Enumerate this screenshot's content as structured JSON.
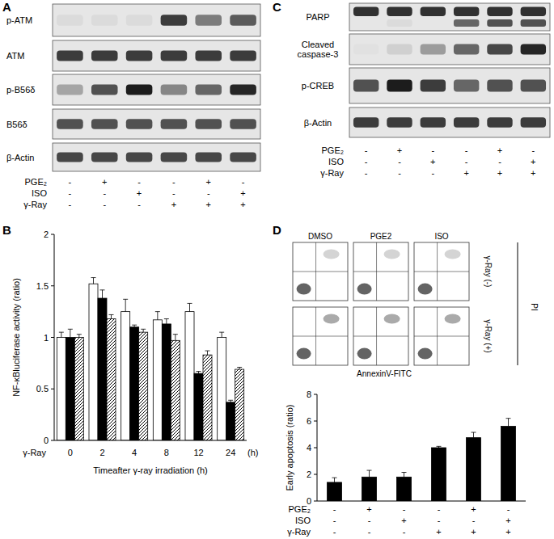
{
  "panels": [
    {
      "label": "A",
      "blots": [
        {
          "name": "p-ATM",
          "intensity": [
            0.05,
            0.05,
            0.05,
            0.8,
            0.5,
            0.65
          ]
        },
        {
          "name": "ATM",
          "intensity": [
            0.8,
            0.8,
            0.8,
            0.8,
            0.8,
            0.8
          ]
        },
        {
          "name": "p-B56δ",
          "intensity": [
            0.3,
            0.7,
            0.95,
            0.45,
            0.6,
            0.9
          ]
        },
        {
          "name": "B56δ",
          "intensity": [
            0.7,
            0.7,
            0.7,
            0.7,
            0.7,
            0.7
          ]
        },
        {
          "name": "β-Actin",
          "intensity": [
            0.75,
            0.75,
            0.75,
            0.75,
            0.75,
            0.75
          ]
        }
      ],
      "conditions": [
        {
          "name": "PGE₂",
          "signs": [
            "-",
            "+",
            "-",
            "-",
            "+",
            "-"
          ]
        },
        {
          "name": "ISO",
          "signs": [
            "-",
            "-",
            "+",
            "-",
            "-",
            "+"
          ]
        },
        {
          "name": "γ-Ray",
          "signs": [
            "-",
            "-",
            "-",
            "+",
            "+",
            "+"
          ]
        }
      ]
    },
    {
      "label": "C",
      "blots": [
        {
          "name": "PARP",
          "intensity": [
            0.85,
            0.85,
            0.85,
            0.85,
            0.85,
            0.85
          ],
          "lower_band": [
            0.0,
            0.05,
            0.0,
            0.6,
            0.7,
            0.7
          ]
        },
        {
          "name": "Cleaved caspase-3",
          "intensity": [
            0.02,
            0.1,
            0.35,
            0.6,
            0.75,
            0.9
          ]
        },
        {
          "name": "p-CREB",
          "intensity": [
            0.7,
            0.95,
            0.8,
            0.6,
            0.7,
            0.7
          ]
        },
        {
          "name": "β-Actin",
          "intensity": [
            0.8,
            0.8,
            0.8,
            0.8,
            0.8,
            0.8
          ]
        }
      ],
      "conditions": [
        {
          "name": "PGE₂",
          "signs": [
            "-",
            "+",
            "-",
            "-",
            "+",
            "-"
          ]
        },
        {
          "name": "ISO",
          "signs": [
            "-",
            "-",
            "+",
            "-",
            "-",
            "+"
          ]
        },
        {
          "name": "γ-Ray",
          "signs": [
            "-",
            "-",
            "-",
            "+",
            "+",
            "+"
          ]
        }
      ]
    },
    {
      "label": "D",
      "flow": {
        "columns": [
          "DMSO",
          "PGE2",
          "ISO"
        ],
        "rows": [
          "γ-Ray (-)",
          "γ-Ray (+)"
        ],
        "y_label": "PI",
        "x_label": "AnnexinV-FITC"
      }
    }
  ],
  "chart_data": [
    {
      "type": "bar",
      "panel": "B",
      "y_label": "NF-κBluciferase activity (ratio)",
      "x_label": "Timeafter γ-ray irradiation (h)",
      "row_label": "γ-Ray",
      "unit_label": "(h)",
      "categories": [
        "0",
        "2",
        "4",
        "8",
        "12",
        "24"
      ],
      "ylim": [
        0,
        2
      ],
      "yticks": [
        0,
        0.5,
        1,
        1.5,
        2
      ],
      "series": [
        {
          "color": "#ffffff",
          "values": [
            1.0,
            1.52,
            1.25,
            1.17,
            1.25,
            1.0
          ],
          "errors": [
            0.05,
            0.06,
            0.12,
            0.08,
            0.08,
            0.05
          ]
        },
        {
          "color": "#000000",
          "values": [
            1.0,
            1.38,
            1.1,
            1.13,
            0.65,
            0.37
          ],
          "errors": [
            0.08,
            0.08,
            0.02,
            0.05,
            0.02,
            0.02
          ]
        },
        {
          "color": "#ffffff",
          "line_style": "hatched",
          "values": [
            1.0,
            1.18,
            1.05,
            0.97,
            0.83,
            0.69
          ],
          "errors": [
            0.03,
            0.04,
            0.03,
            0.06,
            0.04,
            0.02
          ]
        }
      ]
    },
    {
      "type": "bar",
      "y_label": "Early apoptosis (ratio)",
      "categories": [
        null,
        null,
        null,
        null,
        null,
        null
      ],
      "ylim": [
        0,
        8
      ],
      "yticks": [
        0,
        2,
        4,
        6,
        8
      ],
      "conditions": [
        {
          "name": "PGE₂",
          "signs": [
            "-",
            "+",
            "-",
            "-",
            "+",
            "-"
          ]
        },
        {
          "name": "ISO",
          "signs": [
            "-",
            "-",
            "+",
            "-",
            "-",
            "+"
          ]
        },
        {
          "name": "γ-Ray",
          "signs": [
            "-",
            "-",
            "-",
            "+",
            "+",
            "+"
          ]
        }
      ],
      "series": [
        {
          "color": "#000000",
          "values": [
            1.4,
            1.8,
            1.8,
            4.0,
            4.75,
            5.6
          ],
          "errors": [
            0.35,
            0.5,
            0.35,
            0.1,
            0.4,
            0.6
          ]
        }
      ]
    }
  ]
}
